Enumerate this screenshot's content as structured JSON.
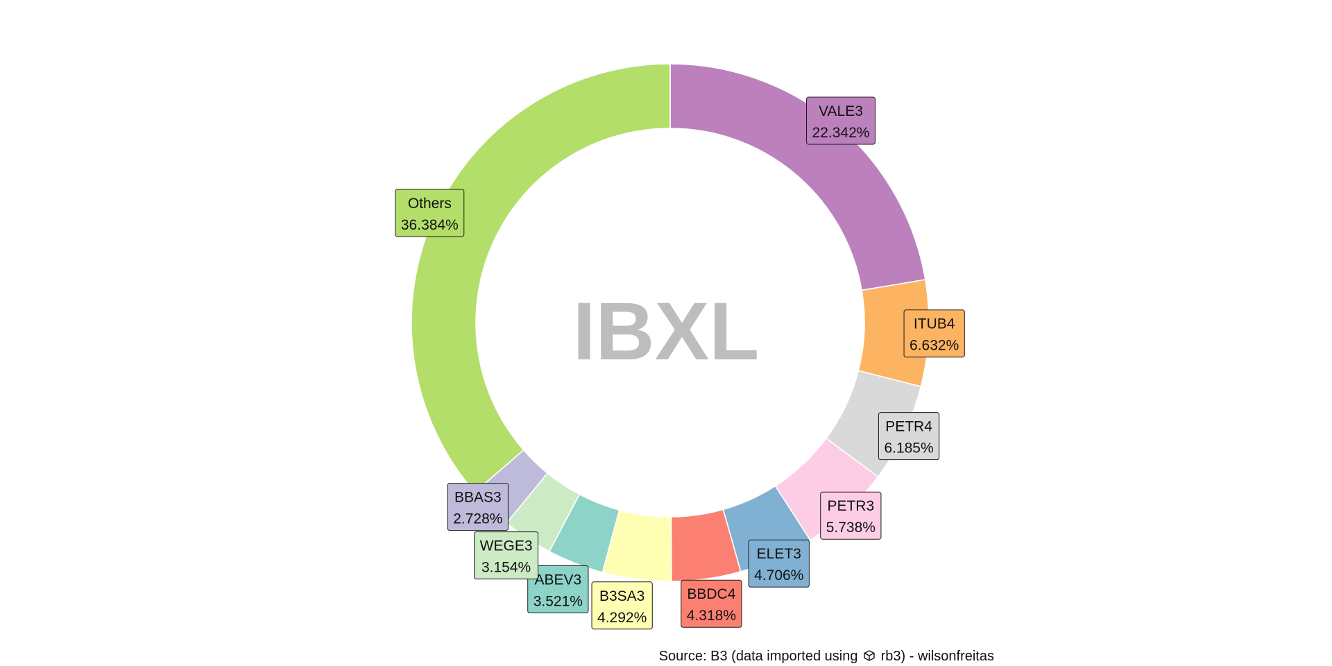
{
  "chart_data": {
    "type": "pie",
    "style": "donut",
    "center_label": "IBXL",
    "slices": [
      {
        "name": "VALE3",
        "value": 22.342,
        "label": "22.342%",
        "color": "#BC80BD"
      },
      {
        "name": "ITUB4",
        "value": 6.632,
        "label": "6.632%",
        "color": "#FDB462"
      },
      {
        "name": "PETR4",
        "value": 6.185,
        "label": "6.185%",
        "color": "#D9D9D9"
      },
      {
        "name": "PETR3",
        "value": 5.738,
        "label": "5.738%",
        "color": "#FCCDE5"
      },
      {
        "name": "ELET3",
        "value": 4.706,
        "label": "4.706%",
        "color": "#80B1D3"
      },
      {
        "name": "BBDC4",
        "value": 4.318,
        "label": "4.318%",
        "color": "#FB8072"
      },
      {
        "name": "B3SA3",
        "value": 4.292,
        "label": "4.292%",
        "color": "#FFFFB3"
      },
      {
        "name": "ABEV3",
        "value": 3.521,
        "label": "3.521%",
        "color": "#8DD3C7"
      },
      {
        "name": "WEGE3",
        "value": 3.154,
        "label": "3.154%",
        "color": "#CCEBC5"
      },
      {
        "name": "BBAS3",
        "value": 2.728,
        "label": "2.728%",
        "color": "#BEBADA"
      },
      {
        "name": "Others",
        "value": 36.384,
        "label": "36.384%",
        "color": "#B3DE69"
      }
    ],
    "legend": "none"
  },
  "caption": {
    "prefix": "Source: B3 (data imported using",
    "icon": "package-icon",
    "suffix": "rb3) - wilsonfreitas"
  }
}
